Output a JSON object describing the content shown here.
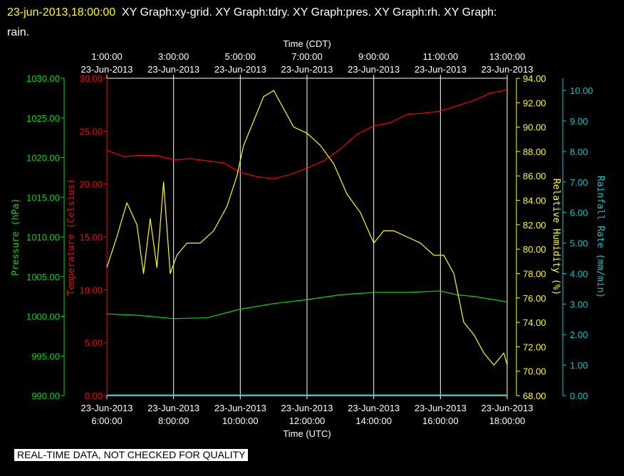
{
  "header": {
    "timestamp": "23-jun-2013,18:00:00",
    "graphs_line1": "XY Graph:xy-grid.  XY Graph:tdry.  XY Graph:pres.  XY Graph:rh.  XY Graph:",
    "graphs_line2": "rain."
  },
  "notice": "REAL-TIME DATA, NOT CHECKED FOR QUALITY",
  "colors": {
    "background": "#000000",
    "grid": "#ffffff",
    "pressure": "#00dd00",
    "temperature": "#ff0000",
    "humidity": "#ffff00",
    "rain": "#00cccc"
  },
  "chart_data": {
    "type": "line",
    "x_bottom_label": "Time (UTC)",
    "x_top_label": "Time (CDT)",
    "x_bottom_ticks": [
      {
        "date": "23-Jun-2013",
        "time": "6:00:00"
      },
      {
        "date": "23-Jun-2013",
        "time": "8:00:00"
      },
      {
        "date": "23-Jun-2013",
        "time": "10:00:00"
      },
      {
        "date": "23-Jun-2013",
        "time": "12:00:00"
      },
      {
        "date": "23-Jun-2013",
        "time": "14:00:00"
      },
      {
        "date": "23-Jun-2013",
        "time": "16:00:00"
      },
      {
        "date": "23-Jun-2013",
        "time": "18:00:00"
      }
    ],
    "x_top_ticks": [
      {
        "date": "23-Jun-2013",
        "time": "1:00:00"
      },
      {
        "date": "23-Jun-2013",
        "time": "3:00:00"
      },
      {
        "date": "23-Jun-2013",
        "time": "5:00:00"
      },
      {
        "date": "23-Jun-2013",
        "time": "7:00:00"
      },
      {
        "date": "23-Jun-2013",
        "time": "9:00:00"
      },
      {
        "date": "23-Jun-2013",
        "time": "11:00:00"
      },
      {
        "date": "23-Jun-2013",
        "time": "13:00:00"
      }
    ],
    "x_range_utc_hours": [
      6,
      18
    ],
    "axes": {
      "pressure": {
        "label": "Pressure (hPa)",
        "range": [
          990,
          1030
        ],
        "ticks": [
          "990.00",
          "995.00",
          "1000.00",
          "1005.00",
          "1010.00",
          "1015.00",
          "1020.00",
          "1025.00",
          "1030.00"
        ]
      },
      "temperature": {
        "label": "Temperature (Celsius)",
        "range": [
          0,
          30
        ],
        "ticks": [
          "0.00",
          "5.00",
          "10.00",
          "15.00",
          "20.00",
          "25.00",
          "30.00"
        ]
      },
      "humidity": {
        "label": "Relative Humidity (%)",
        "range": [
          68,
          94
        ],
        "ticks": [
          "68.00",
          "70.00",
          "72.00",
          "74.00",
          "76.00",
          "78.00",
          "80.00",
          "82.00",
          "84.00",
          "86.00",
          "88.00",
          "90.00",
          "92.00",
          "94.00"
        ]
      },
      "rain": {
        "label": "Rainfall Rate (mm/min)",
        "range": [
          0,
          10.4
        ],
        "ticks": [
          "0.00",
          "1.00",
          "2.00",
          "3.00",
          "4.00",
          "5.00",
          "6.00",
          "7.00",
          "8.00",
          "9.00",
          "10.00"
        ]
      }
    },
    "series": [
      {
        "key": "pressure",
        "x": [
          6.0,
          7.0,
          8.0,
          9.0,
          10.0,
          11.0,
          12.0,
          13.0,
          14.0,
          15.0,
          16.0,
          16.5,
          17.0,
          18.0
        ],
        "y": [
          1000.3,
          1000.1,
          999.7,
          999.8,
          1000.9,
          1001.6,
          1002.1,
          1002.7,
          1003.0,
          1003.0,
          1003.2,
          1002.7,
          1002.5,
          1001.8
        ]
      },
      {
        "key": "temperature",
        "x": [
          6.0,
          6.5,
          7.0,
          7.5,
          8.0,
          8.5,
          9.0,
          9.5,
          10.0,
          10.5,
          11.0,
          11.5,
          12.0,
          12.5,
          13.0,
          13.5,
          14.0,
          14.5,
          15.0,
          15.5,
          16.0,
          16.5,
          17.0,
          17.5,
          18.0
        ],
        "y": [
          23.2,
          22.6,
          22.7,
          22.7,
          22.3,
          22.4,
          22.2,
          22.0,
          21.1,
          20.7,
          20.5,
          20.9,
          21.5,
          22.2,
          23.3,
          24.7,
          25.5,
          25.8,
          26.6,
          26.7,
          26.9,
          27.4,
          27.9,
          28.6,
          28.9
        ]
      },
      {
        "key": "humidity",
        "x": [
          6.0,
          6.3,
          6.6,
          6.9,
          7.1,
          7.3,
          7.5,
          7.7,
          7.9,
          8.1,
          8.4,
          8.8,
          9.2,
          9.6,
          9.9,
          10.1,
          10.4,
          10.7,
          11.0,
          11.3,
          11.6,
          12.0,
          12.4,
          12.8,
          13.2,
          13.6,
          14.0,
          14.3,
          14.6,
          15.0,
          15.4,
          15.8,
          16.1,
          16.4,
          16.7,
          17.0,
          17.3,
          17.6,
          17.9,
          18.0
        ],
        "y": [
          78.5,
          81.0,
          83.8,
          82.0,
          78.0,
          82.5,
          78.5,
          85.5,
          78.0,
          79.5,
          80.5,
          80.5,
          81.5,
          83.5,
          86.0,
          88.5,
          90.5,
          92.5,
          93.0,
          91.5,
          90.0,
          89.5,
          88.5,
          87.0,
          84.5,
          83.0,
          80.5,
          81.5,
          81.5,
          81.0,
          80.5,
          79.5,
          79.5,
          78.0,
          74.0,
          73.0,
          71.5,
          70.5,
          71.5,
          70.5
        ]
      },
      {
        "key": "rain",
        "x": [
          6.0,
          18.0
        ],
        "y": [
          0.02,
          0.02
        ]
      }
    ]
  }
}
